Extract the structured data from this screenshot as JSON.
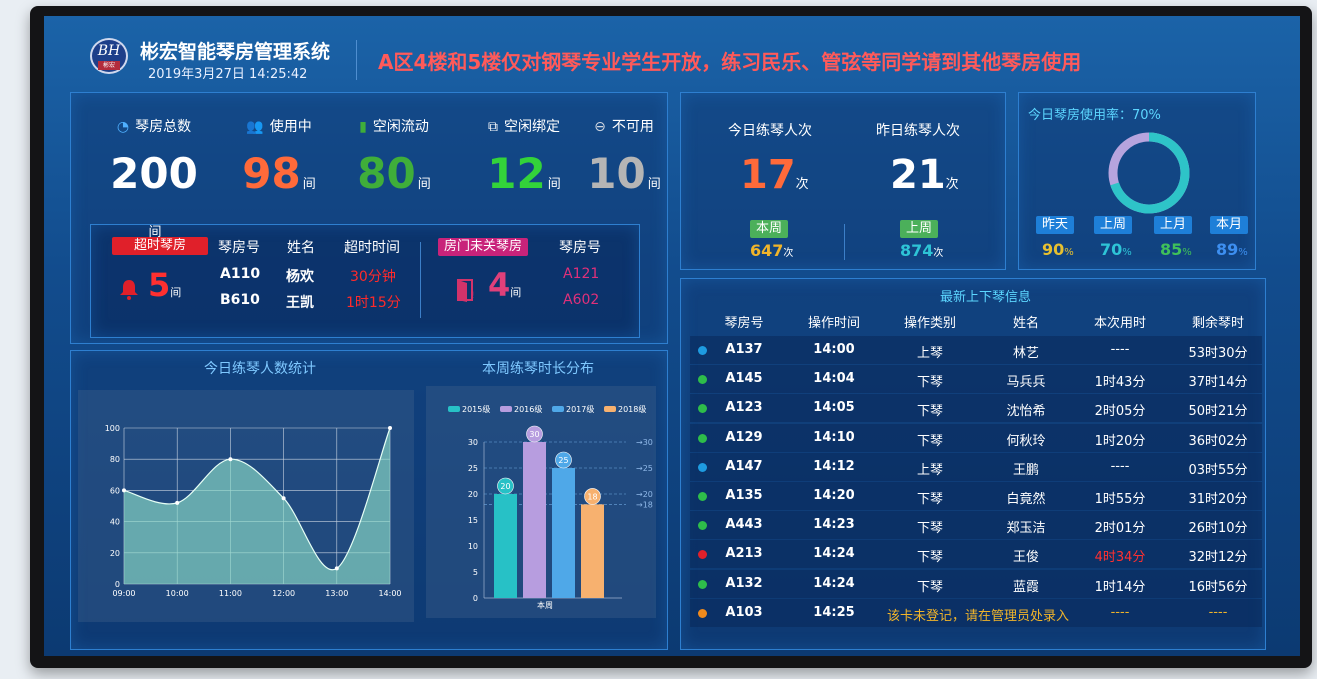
{
  "header": {
    "logo_mark": "BH",
    "logo_sub": "彬宏",
    "title": "彬宏智能琴房管理系统",
    "datetime": "2019年3月27日  14:25:42",
    "notice": "A区4楼和5楼仅对钢琴专业学生开放，练习民乐、管弦等同学请到其他琴房使用"
  },
  "stats": [
    {
      "label": "琴房总数",
      "value": "200",
      "unit": "间",
      "icon": "pie-chart-icon",
      "color": "#ffffff"
    },
    {
      "label": "使用中",
      "value": "98",
      "unit": "间",
      "icon": "users-icon",
      "color": "#ff6a3a"
    },
    {
      "label": "空闲流动",
      "value": "80",
      "unit": "间",
      "icon": "door-icon",
      "color": "#3fae3a"
    },
    {
      "label": "空闲绑定",
      "value": "12",
      "unit": "间",
      "icon": "link-icon",
      "color": "#33d33a"
    },
    {
      "label": "不可用",
      "value": "10",
      "unit": "间",
      "icon": "disabled-icon",
      "color": "#b5b5b5"
    }
  ],
  "overtime": {
    "tag": "超时琴房",
    "count": "5",
    "unit": "间",
    "col_room": "琴房号",
    "col_name": "姓名",
    "col_time": "超时时间",
    "rows": [
      {
        "room": "A110",
        "name": "杨欢",
        "time": "30分钟"
      },
      {
        "room": "B610",
        "name": "王凯",
        "time": "1时15分"
      }
    ]
  },
  "door_open": {
    "tag": "房门未关琴房",
    "count": "4",
    "unit": "间",
    "col_room": "琴房号",
    "rooms": [
      "A121",
      "A602"
    ]
  },
  "today_practice": {
    "label": "今日练琴人次",
    "value": "17",
    "unit": "次",
    "week_tag": "本周",
    "week_value": "647",
    "week_unit": "次"
  },
  "yesterday_practice": {
    "label": "昨日练琴人次",
    "value": "21",
    "unit": "次",
    "week_tag": "上周",
    "week_value": "874",
    "week_unit": "次"
  },
  "usage": {
    "title": "今日琴房使用率：70%",
    "rate": 70,
    "periods": [
      {
        "label": "昨天",
        "value": "90",
        "unit": "%",
        "color": "#e6c030"
      },
      {
        "label": "上周",
        "value": "70",
        "unit": "%",
        "color": "#2ec4d6"
      },
      {
        "label": "上月",
        "value": "85",
        "unit": "%",
        "color": "#3fc05a"
      },
      {
        "label": "本月",
        "value": "89",
        "unit": "%",
        "color": "#3d8ff0"
      }
    ]
  },
  "charts_titles": {
    "line": "今日练琴人数统计",
    "bar": "本周练琴时长分布"
  },
  "chart_data": [
    {
      "type": "line",
      "title": "今日练琴人数统计",
      "x": [
        "09:00",
        "10:00",
        "11:00",
        "12:00",
        "13:00",
        "14:00"
      ],
      "series": [
        {
          "x": [
            0,
            1,
            2,
            3,
            4,
            5
          ],
          "values": [
            60,
            52,
            80,
            55,
            10,
            100
          ]
        }
      ],
      "ylim": [
        0,
        100
      ],
      "yticks": [
        0,
        20,
        40,
        60,
        80,
        100
      ],
      "grid": true
    },
    {
      "type": "bar",
      "title": "本周练琴时长分布",
      "categories": [
        "本周"
      ],
      "series": [
        {
          "name": "2015级",
          "values": [
            20
          ],
          "color": "#27c1c6"
        },
        {
          "name": "2016级",
          "values": [
            30
          ],
          "color": "#b79ddf"
        },
        {
          "name": "2017级",
          "values": [
            25
          ],
          "color": "#4fa8e8"
        },
        {
          "name": "2018级",
          "values": [
            18
          ],
          "color": "#f7b16f"
        }
      ],
      "ylim": [
        0,
        30
      ],
      "yticks": [
        0,
        5,
        10,
        15,
        20,
        25,
        30
      ],
      "right_markers": [
        {
          "label": "30",
          "value": 30
        },
        {
          "label": "25",
          "value": 25
        },
        {
          "label": "20",
          "value": 20
        },
        {
          "label": "18",
          "value": 18
        }
      ],
      "data_labels": [
        "20",
        "30",
        "25",
        "18"
      ],
      "legend": "top"
    }
  ],
  "log": {
    "title": "最新上下琴信息",
    "headers": [
      "琴房号",
      "操作时间",
      "操作类别",
      "姓名",
      "本次用时",
      "剩余琴时"
    ],
    "rows": [
      {
        "room": "A137",
        "time": "14:00",
        "op": "上琴",
        "name": "林艺",
        "used": "----",
        "remain": "53时30分",
        "dot": "#1e9be0",
        "used_color": "#ffffff"
      },
      {
        "room": "A145",
        "time": "14:04",
        "op": "下琴",
        "name": "马兵兵",
        "used": "1时43分",
        "remain": "37时14分",
        "dot": "#2ebd4a",
        "used_color": "#ffffff"
      },
      {
        "room": "A123",
        "time": "14:05",
        "op": "下琴",
        "name": "沈怡希",
        "used": "2时05分",
        "remain": "50时21分",
        "dot": "#2ebd4a",
        "used_color": "#ffffff"
      },
      {
        "room": "A129",
        "time": "14:10",
        "op": "下琴",
        "name": "何秋玲",
        "used": "1时20分",
        "remain": "36时02分",
        "dot": "#2ebd4a",
        "used_color": "#ffffff"
      },
      {
        "room": "A147",
        "time": "14:12",
        "op": "上琴",
        "name": "王鹏",
        "used": "----",
        "remain": "03时55分",
        "dot": "#1e9be0",
        "used_color": "#ffffff"
      },
      {
        "room": "A135",
        "time": "14:20",
        "op": "下琴",
        "name": "白竟然",
        "used": "1时55分",
        "remain": "31时20分",
        "dot": "#2ebd4a",
        "used_color": "#ffffff"
      },
      {
        "room": "A443",
        "time": "14:23",
        "op": "下琴",
        "name": "郑玉洁",
        "used": "2时01分",
        "remain": "26时10分",
        "dot": "#2ebd4a",
        "used_color": "#ffffff"
      },
      {
        "room": "A213",
        "time": "14:24",
        "op": "下琴",
        "name": "王俊",
        "used": "4时34分",
        "remain": "32时12分",
        "dot": "#e0202a",
        "used_color": "#ff3030"
      },
      {
        "room": "A132",
        "time": "14:24",
        "op": "下琴",
        "name": "蓝霞",
        "used": "1时14分",
        "remain": "16时56分",
        "dot": "#2ebd4a",
        "used_color": "#ffffff"
      }
    ],
    "alert_row": {
      "room": "A103",
      "time": "14:25",
      "message": "该卡未登记，请在管理员处录入",
      "used": "----",
      "remain": "----",
      "dot": "#f08a1c"
    }
  }
}
